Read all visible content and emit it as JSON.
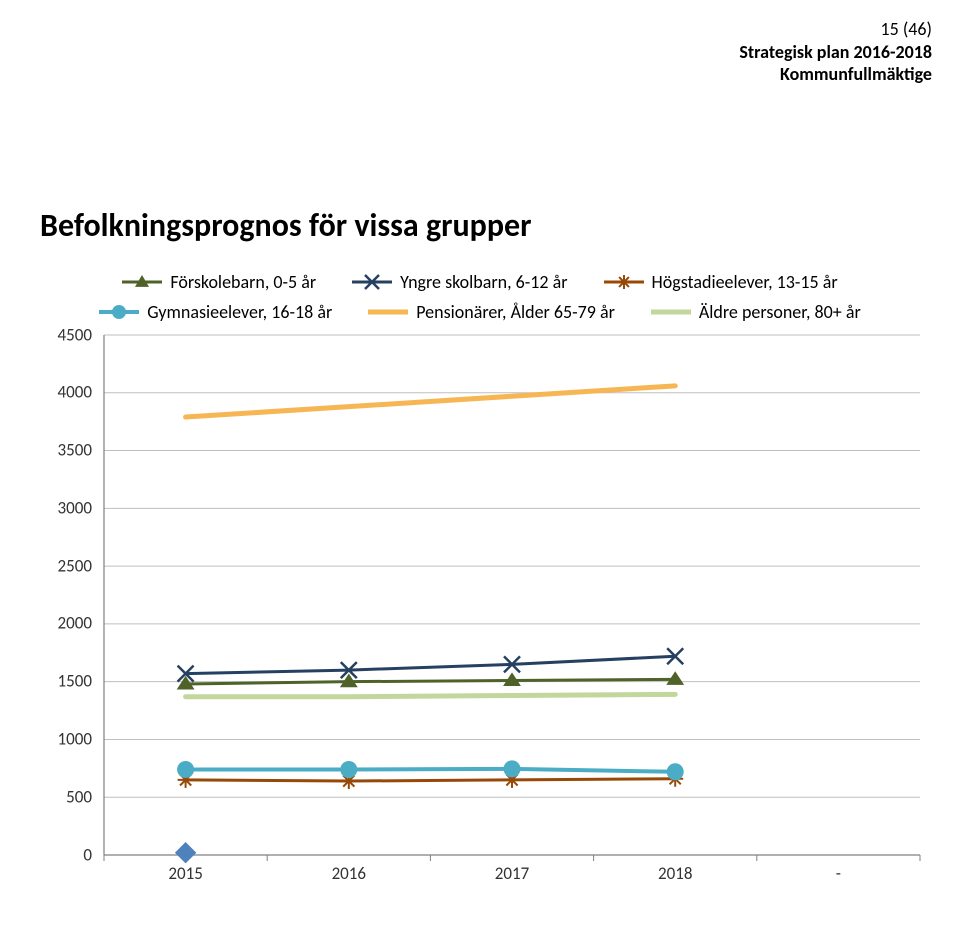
{
  "header": {
    "page_indicator": "15 (46)",
    "line2": "Strategisk plan 2016-2018",
    "line3": "Kommunfullmäktige"
  },
  "chart": {
    "title": "Befolkningsprognos för vissa grupper",
    "type": "line",
    "background_color": "#ffffff",
    "grid_color": "#bfbfbf",
    "axis_color": "#808080",
    "label_fontsize": 17,
    "title_fontsize": 32,
    "ylim": [
      0,
      4500
    ],
    "ytick_step": 500,
    "yticks": [
      0,
      500,
      1000,
      1500,
      2000,
      2500,
      3000,
      3500,
      4000,
      4500
    ],
    "categories": [
      "2015",
      "2016",
      "2017",
      "2018",
      "-"
    ],
    "legend_position": "top-center",
    "series": [
      {
        "name": "Förskolebarn, 0-5 år",
        "color": "#4f6228",
        "marker": "triangle",
        "line_width": 3,
        "values": [
          1480,
          1500,
          1510,
          1520
        ]
      },
      {
        "name": "Yngre skolbarn, 6-12 år",
        "color": "#254061",
        "marker": "x",
        "line_width": 3,
        "values": [
          1570,
          1600,
          1650,
          1720
        ]
      },
      {
        "name": "Högstadieelever, 13-15 år",
        "color": "#984807",
        "marker": "asterisk",
        "line_width": 3,
        "values": [
          650,
          640,
          650,
          660
        ]
      },
      {
        "name": "Gymnasieelever, 16-18 år",
        "color": "#4bacc6",
        "marker": "circle",
        "line_width": 4,
        "values": [
          740,
          740,
          745,
          720
        ]
      },
      {
        "name": "Pensionärer, Ålder 65-79 år",
        "color": "#f6b653",
        "marker": "none",
        "line_width": 5,
        "values": [
          3790,
          3880,
          3970,
          4060
        ]
      },
      {
        "name": "Äldre personer, 80+ år",
        "color": "#c3d69b",
        "marker": "none",
        "line_width": 5,
        "values": [
          1370,
          1370,
          1380,
          1390
        ]
      }
    ],
    "extra_markers": [
      {
        "shape": "diamond",
        "color": "#4f81bd",
        "x_category": "2015",
        "y": 20,
        "size": 12
      }
    ]
  }
}
